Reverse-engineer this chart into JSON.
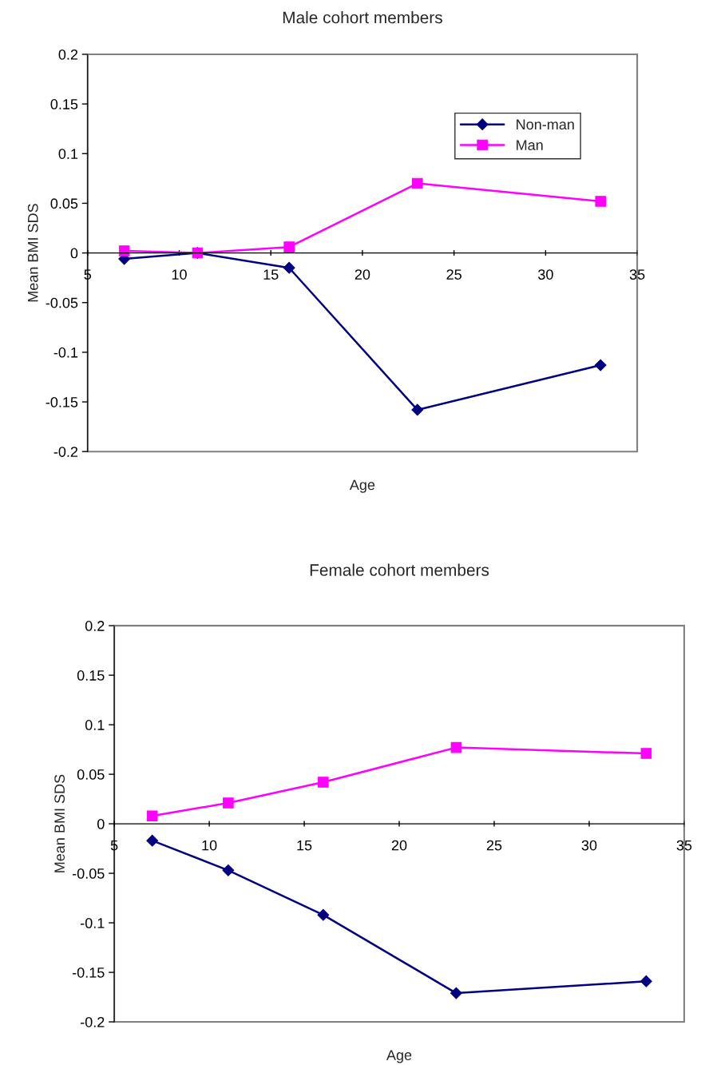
{
  "chart_data": [
    {
      "type": "line",
      "title": "Male cohort members",
      "xlabel": "Age",
      "ylabel": "Mean BMI SDS",
      "x": [
        7,
        11,
        16,
        23,
        33
      ],
      "series": [
        {
          "name": "Non-man",
          "color": "#000080",
          "marker": "diamond",
          "values": [
            -0.006,
            0,
            -0.015,
            -0.158,
            -0.113
          ]
        },
        {
          "name": "Man",
          "color": "#ff00ff",
          "marker": "square",
          "values": [
            0.002,
            0,
            0.006,
            0.07,
            0.052
          ]
        }
      ],
      "xlim": [
        5,
        35
      ],
      "xticks": [
        5,
        10,
        15,
        20,
        25,
        30,
        35
      ],
      "ylim": [
        -0.2,
        0.2
      ],
      "yticks": [
        -0.2,
        -0.15,
        -0.1,
        -0.05,
        0,
        0.05,
        0.1,
        0.15,
        0.2
      ],
      "grid": false,
      "legend": "top right"
    },
    {
      "type": "line",
      "title": "Female cohort members",
      "xlabel": "Age",
      "ylabel": "Mean BMI SDS",
      "x": [
        7,
        11,
        16,
        23,
        33
      ],
      "series": [
        {
          "color": "#000080",
          "marker": "diamond",
          "values": [
            -0.017,
            -0.047,
            -0.092,
            -0.171,
            -0.159
          ]
        },
        {
          "color": "#ff00ff",
          "marker": "square",
          "values": [
            0.008,
            0.021,
            0.042,
            0.077,
            0.071
          ]
        }
      ],
      "xlim": [
        5,
        35
      ],
      "xticks": [
        5,
        10,
        15,
        20,
        25,
        30,
        35
      ],
      "ylim": [
        -0.2,
        0.2
      ],
      "yticks": [
        -0.2,
        -0.15,
        -0.1,
        -0.05,
        0,
        0.05,
        0.1,
        0.15,
        0.2
      ],
      "grid": false,
      "legend": false
    }
  ]
}
